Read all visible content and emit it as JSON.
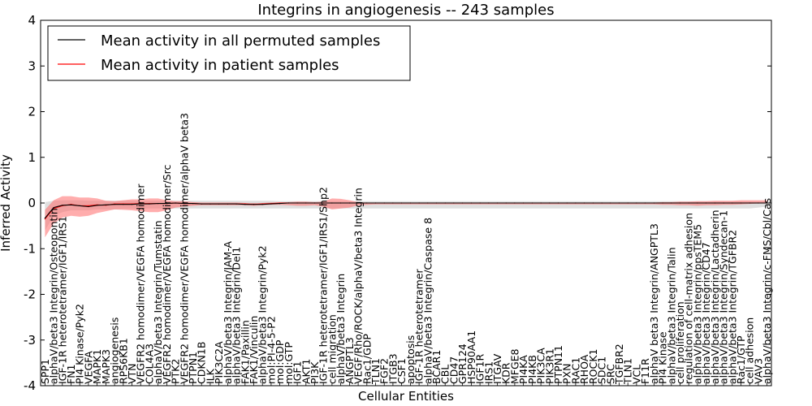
{
  "chart_data": {
    "type": "line",
    "title": "Integrins in angiogenesis -- 243 samples",
    "xlabel": "Cellular Entities",
    "ylabel": "Inferred Activity",
    "ylim": [
      -4,
      4
    ],
    "yticks": [
      -4,
      -3,
      -2,
      -1,
      0,
      1,
      2,
      3,
      4
    ],
    "grid": false,
    "legend_position": "top-left",
    "legend": [
      {
        "label": "Mean activity in all permuted samples",
        "color": "#000000"
      },
      {
        "label": "Mean activity in patient samples",
        "color": "#ff0000"
      }
    ],
    "categories": [
      "SPP1",
      "alphaV/beta3 Integrin/Osteopontin",
      "IGF-1R heterotetramer/IGF1/IRS1",
      "FN1",
      "PI4 Kinase/Pyk2",
      "VEGFA",
      "MAPK1",
      "MAPK3",
      "angiogenesis",
      "RPS6KB1",
      "VTN",
      "VEGFR2 homodimer/VEGFA homodimer",
      "COL4A3",
      "alphaV/beta3 Integrin/Tumstatin",
      "VEGFR2 homodimer/VEGFA homodimer/Src",
      "PTK2",
      "VEGFR2 homodimer/VEGFA homodimer/alphaV beta3",
      "PTPN1",
      "CDKN1B",
      "ILK",
      "PIK3C2A",
      "alphaV/beta3 Integrin/JAM-A",
      "alphaV/beta3 Integrin/Del1",
      "FAK1/Paxillin",
      "FAK1/Vinculin",
      "alphaV/beta3 Integrin/Pyk2",
      "mol:PI-4-5-P2",
      "mol:GDP",
      "mol:GTP",
      "IGF1",
      "AKT1",
      "PI3K",
      "IGF-1R heterotetramer/IGF1/IRS1/Shp2",
      "cell migration",
      "alphaV/beta3 Integrin",
      "ANGPTL3",
      "VEGF/Rho/ROCK/alphaV/beta3 Integrin",
      "Rac1/GDP",
      "TLN1",
      "FGF2",
      "ITGB3",
      "CSF1",
      "apoptosis",
      "IGF-1R heterotetramer",
      "alphaV/beta3 Integrin/Caspase 8",
      "BCAR1",
      "CBL",
      "CD47",
      "GPR124",
      "HSP90AA1",
      "IGF1R",
      "IRS1",
      "ITGAV",
      "KDR",
      "MFGE8",
      "PI4KA",
      "PI4KB",
      "PIK3CA",
      "PIK3R1",
      "PTPN11",
      "PXN",
      "RAC1",
      "RHOA",
      "ROCK1",
      "SDC1",
      "SRC",
      "TGFBR2",
      "TLN1",
      "VCL",
      "F11R",
      "alphaV beta3 Integrin/ANGPTL3",
      "PI4 Kinase",
      "alphaV/beta3 Integrin/Talin",
      "cell proliferation",
      "regulation of cell-matrix adhesion",
      "alphaV/beta3 Integrin/ppsTEM5",
      "alphaV/beta3 Integrin/CD47",
      "alphaV/beta3 Integrin/Lactadherin",
      "alphaV/beta3 Integrin/Syndecan-1",
      "alphaV/beta3 Integrin/TGFBR2",
      "Rac1/GTP",
      "cell adhesion",
      "VAV3",
      "alphaV/beta3 Integrin/c-FMS/Cbl/Cas"
    ],
    "series": [
      {
        "name": "Mean activity in all permuted samples",
        "color": "#000000",
        "values": [
          -0.33,
          -0.1,
          -0.05,
          -0.04,
          -0.06,
          -0.08,
          -0.05,
          -0.04,
          -0.03,
          -0.03,
          -0.03,
          -0.02,
          -0.02,
          -0.01,
          -0.01,
          0.0,
          -0.01,
          -0.01,
          -0.02,
          -0.02,
          -0.02,
          -0.02,
          -0.02,
          -0.03,
          -0.03,
          -0.03,
          -0.02,
          -0.01,
          0.0,
          0.0,
          0.0,
          0.0,
          0.0,
          0.0,
          0.0,
          0.0,
          0.0,
          0.0,
          0.0,
          0.0,
          0.0,
          0.0,
          0.0,
          0.0,
          0.0,
          0.0,
          0.0,
          0.0,
          0.0,
          0.0,
          0.0,
          0.0,
          0.0,
          0.0,
          0.0,
          0.0,
          0.0,
          0.0,
          0.0,
          0.0,
          0.0,
          0.0,
          0.0,
          0.0,
          0.0,
          0.0,
          0.0,
          0.0,
          0.0,
          0.0,
          0.0,
          0.0,
          0.0,
          0.0,
          0.0,
          0.0,
          0.0,
          0.0,
          0.0,
          0.0,
          0.0,
          0.0,
          0.0,
          0.0
        ],
        "upper": [
          0.02,
          0.05,
          0.06,
          0.06,
          0.06,
          0.05,
          0.05,
          0.05,
          0.05,
          0.05,
          0.05,
          0.05,
          0.05,
          0.05,
          0.05,
          0.05,
          0.05,
          0.05,
          0.05,
          0.05,
          0.05,
          0.05,
          0.05,
          0.05,
          0.05,
          0.05,
          0.05,
          0.04,
          0.04,
          0.04,
          0.04,
          0.04,
          0.04,
          0.04,
          0.04,
          0.04,
          0.04,
          0.04,
          0.04,
          0.04,
          0.04,
          0.04,
          0.04,
          0.04,
          0.04,
          0.04,
          0.04,
          0.04,
          0.04,
          0.04,
          0.04,
          0.04,
          0.04,
          0.04,
          0.04,
          0.04,
          0.04,
          0.04,
          0.04,
          0.04,
          0.04,
          0.04,
          0.04,
          0.04,
          0.04,
          0.04,
          0.04,
          0.04,
          0.04,
          0.04,
          0.04,
          0.04,
          0.04,
          0.04,
          0.04,
          0.04,
          0.04,
          0.04,
          0.04,
          0.04,
          0.04,
          0.04,
          0.04,
          0.04
        ],
        "lower": [
          -0.6,
          -0.28,
          -0.2,
          -0.16,
          -0.16,
          -0.16,
          -0.14,
          -0.14,
          -0.14,
          -0.13,
          -0.13,
          -0.12,
          -0.12,
          -0.12,
          -0.12,
          -0.12,
          -0.12,
          -0.12,
          -0.12,
          -0.12,
          -0.12,
          -0.12,
          -0.12,
          -0.12,
          -0.12,
          -0.12,
          -0.12,
          -0.12,
          -0.12,
          -0.12,
          -0.12,
          -0.12,
          -0.12,
          -0.12,
          -0.12,
          -0.12,
          -0.12,
          -0.12,
          -0.12,
          -0.12,
          -0.12,
          -0.12,
          -0.12,
          -0.12,
          -0.12,
          -0.12,
          -0.12,
          -0.12,
          -0.12,
          -0.12,
          -0.12,
          -0.12,
          -0.12,
          -0.12,
          -0.12,
          -0.12,
          -0.12,
          -0.12,
          -0.12,
          -0.12,
          -0.12,
          -0.12,
          -0.12,
          -0.12,
          -0.12,
          -0.12,
          -0.12,
          -0.12,
          -0.12,
          -0.12,
          -0.12,
          -0.12,
          -0.12,
          -0.12,
          -0.12,
          -0.12,
          -0.12,
          -0.12,
          -0.12,
          -0.12,
          -0.12,
          -0.12,
          -0.1,
          -0.08
        ]
      },
      {
        "name": "Mean activity in patient samples",
        "color": "#ff0000",
        "values": [
          -0.35,
          -0.12,
          -0.06,
          -0.03,
          -0.06,
          -0.06,
          -0.04,
          -0.05,
          -0.02,
          -0.02,
          -0.02,
          -0.01,
          -0.01,
          -0.01,
          -0.01,
          0.0,
          -0.01,
          -0.01,
          -0.02,
          -0.02,
          -0.02,
          -0.02,
          -0.02,
          -0.02,
          -0.03,
          -0.02,
          -0.01,
          0.0,
          0.0,
          0.0,
          0.0,
          0.0,
          0.0,
          0.0,
          0.0,
          0.0,
          0.0,
          0.0,
          0.0,
          0.0,
          0.0,
          0.0,
          0.0,
          0.0,
          0.0,
          0.0,
          0.0,
          0.0,
          0.0,
          0.0,
          0.0,
          0.0,
          0.0,
          0.0,
          0.0,
          0.0,
          0.0,
          0.0,
          0.0,
          0.0,
          0.0,
          0.0,
          0.0,
          0.0,
          0.0,
          0.0,
          0.0,
          0.0,
          0.0,
          0.0,
          0.0,
          0.0,
          0.0,
          0.0,
          0.0,
          0.0,
          0.0,
          0.0,
          0.0,
          0.0,
          0.0,
          0.0,
          0.0,
          0.0
        ],
        "upper": [
          -0.15,
          0.06,
          0.15,
          0.15,
          0.12,
          0.12,
          0.1,
          0.05,
          0.04,
          0.06,
          0.08,
          0.08,
          0.1,
          0.1,
          0.06,
          0.04,
          0.04,
          0.02,
          0.01,
          0.01,
          0.01,
          0.01,
          0.01,
          0.0,
          0.0,
          0.0,
          0.01,
          0.01,
          0.02,
          0.03,
          0.03,
          0.02,
          0.03,
          0.1,
          0.09,
          0.06,
          0.02,
          0.01,
          0.01,
          0.01,
          0.01,
          0.01,
          0.01,
          0.01,
          0.01,
          0.01,
          0.01,
          0.01,
          0.01,
          0.01,
          0.01,
          0.01,
          0.01,
          0.01,
          0.01,
          0.01,
          0.01,
          0.01,
          0.01,
          0.01,
          0.01,
          0.01,
          0.01,
          0.01,
          0.01,
          0.01,
          0.01,
          0.01,
          0.01,
          0.01,
          0.01,
          0.02,
          0.02,
          0.03,
          0.03,
          0.04,
          0.04,
          0.05,
          0.05,
          0.05,
          0.06,
          0.06,
          0.06,
          0.06
        ],
        "lower": [
          -0.75,
          -0.45,
          -0.32,
          -0.28,
          -0.3,
          -0.28,
          -0.22,
          -0.18,
          -0.14,
          -0.15,
          -0.16,
          -0.18,
          -0.2,
          -0.2,
          -0.16,
          -0.1,
          -0.08,
          -0.06,
          -0.05,
          -0.05,
          -0.05,
          -0.05,
          -0.05,
          -0.05,
          -0.06,
          -0.05,
          -0.04,
          -0.04,
          -0.05,
          -0.06,
          -0.06,
          -0.05,
          -0.08,
          -0.14,
          -0.12,
          -0.1,
          -0.05,
          -0.04,
          -0.03,
          -0.03,
          -0.03,
          -0.03,
          -0.03,
          -0.03,
          -0.03,
          -0.03,
          -0.03,
          -0.03,
          -0.03,
          -0.03,
          -0.03,
          -0.03,
          -0.03,
          -0.03,
          -0.03,
          -0.03,
          -0.03,
          -0.03,
          -0.03,
          -0.03,
          -0.03,
          -0.03,
          -0.03,
          -0.03,
          -0.03,
          -0.03,
          -0.03,
          -0.03,
          -0.03,
          -0.03,
          -0.03,
          -0.04,
          -0.04,
          -0.05,
          -0.05,
          -0.06,
          -0.05,
          -0.05,
          -0.04,
          -0.04,
          -0.03,
          -0.02,
          -0.01,
          -0.01
        ]
      }
    ]
  }
}
